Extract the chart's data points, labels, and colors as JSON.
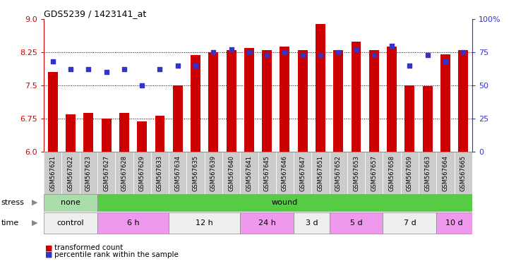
{
  "title": "GDS5239 / 1423141_at",
  "samples": [
    "GSM567621",
    "GSM567622",
    "GSM567623",
    "GSM567627",
    "GSM567628",
    "GSM567629",
    "GSM567633",
    "GSM567634",
    "GSM567635",
    "GSM567639",
    "GSM567640",
    "GSM567641",
    "GSM567645",
    "GSM567646",
    "GSM567647",
    "GSM567651",
    "GSM567652",
    "GSM567653",
    "GSM567657",
    "GSM567658",
    "GSM567659",
    "GSM567663",
    "GSM567664",
    "GSM567665"
  ],
  "bar_values": [
    7.8,
    6.85,
    6.88,
    6.75,
    6.88,
    6.68,
    6.82,
    7.5,
    8.18,
    8.25,
    8.3,
    8.35,
    8.3,
    8.38,
    8.3,
    8.88,
    8.3,
    8.48,
    8.3,
    8.38,
    7.5,
    7.48,
    8.2,
    8.3
  ],
  "dot_percentiles": [
    68,
    62,
    62,
    60,
    62,
    50,
    62,
    65,
    65,
    75,
    77,
    75,
    73,
    75,
    73,
    73,
    75,
    77,
    73,
    80,
    65,
    73,
    68,
    75
  ],
  "ylim_left": [
    6.0,
    9.0
  ],
  "ylim_right": [
    0,
    100
  ],
  "yticks_left": [
    6.0,
    6.75,
    7.5,
    8.25,
    9.0
  ],
  "yticks_right": [
    0,
    25,
    50,
    75,
    100
  ],
  "ytick_labels_right": [
    "0",
    "25",
    "50",
    "75",
    "100%"
  ],
  "bar_color": "#cc0000",
  "dot_color": "#3333cc",
  "stress_groups": [
    {
      "label": "none",
      "start": 0,
      "end": 3,
      "color": "#aaddaa"
    },
    {
      "label": "wound",
      "start": 3,
      "end": 24,
      "color": "#55cc44"
    }
  ],
  "time_groups": [
    {
      "label": "control",
      "start": 0,
      "end": 3,
      "color": "#eeeeee"
    },
    {
      "label": "6 h",
      "start": 3,
      "end": 7,
      "color": "#ee99ee"
    },
    {
      "label": "12 h",
      "start": 7,
      "end": 11,
      "color": "#eeeeee"
    },
    {
      "label": "24 h",
      "start": 11,
      "end": 14,
      "color": "#ee99ee"
    },
    {
      "label": "3 d",
      "start": 14,
      "end": 16,
      "color": "#eeeeee"
    },
    {
      "label": "5 d",
      "start": 16,
      "end": 19,
      "color": "#ee99ee"
    },
    {
      "label": "7 d",
      "start": 19,
      "end": 22,
      "color": "#eeeeee"
    },
    {
      "label": "10 d",
      "start": 22,
      "end": 24,
      "color": "#ee99ee"
    }
  ],
  "hlines": [
    6.75,
    7.5,
    8.25
  ],
  "background_color": "#ffffff",
  "bar_width": 0.55,
  "xtick_bg": "#cccccc",
  "legend": [
    {
      "label": "transformed count",
      "color": "#cc0000"
    },
    {
      "label": "percentile rank within the sample",
      "color": "#3333cc"
    }
  ]
}
